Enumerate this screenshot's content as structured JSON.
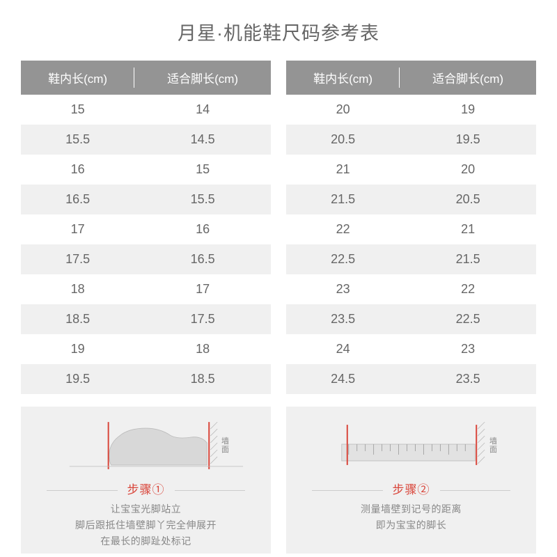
{
  "title": "月星·机能鞋尺码参考表",
  "headers": {
    "insole": "鞋内长(cm)",
    "foot": "适合脚长(cm)"
  },
  "table_left": [
    [
      "15",
      "14"
    ],
    [
      "15.5",
      "14.5"
    ],
    [
      "16",
      "15"
    ],
    [
      "16.5",
      "15.5"
    ],
    [
      "17",
      "16"
    ],
    [
      "17.5",
      "16.5"
    ],
    [
      "18",
      "17"
    ],
    [
      "18.5",
      "17.5"
    ],
    [
      "19",
      "18"
    ],
    [
      "19.5",
      "18.5"
    ]
  ],
  "table_right": [
    [
      "20",
      "19"
    ],
    [
      "20.5",
      "19.5"
    ],
    [
      "21",
      "20"
    ],
    [
      "21.5",
      "20.5"
    ],
    [
      "22",
      "21"
    ],
    [
      "22.5",
      "21.5"
    ],
    [
      "23",
      "22"
    ],
    [
      "23.5",
      "22.5"
    ],
    [
      "24",
      "23"
    ],
    [
      "24.5",
      "23.5"
    ]
  ],
  "steps": {
    "wall_label": "墙\n面",
    "step1": {
      "label": "步骤①",
      "line1": "让宝宝光脚站立",
      "line2": "脚后跟抵住墙壁脚丫完全伸展开",
      "line3": "在最长的脚趾处标记"
    },
    "step2": {
      "label": "步骤②",
      "line1": "测量墙壁到记号的距离",
      "line2": "即为宝宝的脚长"
    }
  },
  "colors": {
    "header_bg": "#949494",
    "alt_row": "#f0f0f0",
    "accent": "#d9453a",
    "text": "#666666",
    "muted": "#888888"
  }
}
